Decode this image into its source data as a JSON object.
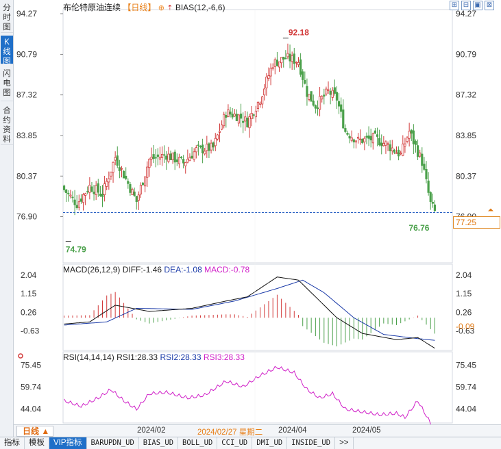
{
  "side_tabs": [
    {
      "label": "分时图",
      "active": false
    },
    {
      "label": "K线图",
      "active": true
    },
    {
      "label": "闪电图",
      "active": false
    },
    {
      "label": "合约资料",
      "active": false
    }
  ],
  "header": {
    "title": "布伦特原油连续",
    "period": "【日线】",
    "gear_glyph": "⊕",
    "arrow_glyph": "⇡",
    "indicator": "BIAS(12,-6,6)"
  },
  "toolbar": [
    "⊞",
    "⊟",
    "▣",
    "⊠"
  ],
  "price_axis": {
    "ticks": [
      "94.27",
      "90.79",
      "87.32",
      "83.85",
      "80.37",
      "76.90"
    ],
    "range": [
      74.0,
      94.27
    ],
    "high_label": "92.18",
    "low_label": "74.79",
    "last_low_label": "76.76",
    "current_price": "77.25"
  },
  "macd": {
    "header_name": "MACD(26,12,9)",
    "diff": "DIFF:-1.46",
    "dea": "DEA:-1.08",
    "macd": "MACD:-0.78",
    "ticks": [
      "2.04",
      "1.15",
      "0.26",
      "-0.63"
    ],
    "current": "-0.09"
  },
  "rsi": {
    "header_name": "RSI(14,14,14)",
    "rsi1": "RSI1:28.33",
    "rsi2": "RSI2:28.33",
    "rsi3": "RSI3:28.33",
    "ticks": [
      "75.45",
      "59.74",
      "44.04"
    ]
  },
  "period_bar": {
    "button": "日线 ▲",
    "dates": [
      "2024/02",
      "2024/02/27 星期二",
      "2024/04",
      "2024/05"
    ]
  },
  "bottom_tabs": [
    {
      "label": "指标",
      "active": false,
      "mono": false
    },
    {
      "label": "模板",
      "active": false,
      "mono": false
    },
    {
      "label": "VIP指标",
      "active": true,
      "mono": false
    },
    {
      "label": "BARUPDN_UD",
      "active": false,
      "mono": true
    },
    {
      "label": "BIAS_UD",
      "active": false,
      "mono": true
    },
    {
      "label": "BOLL_UD",
      "active": false,
      "mono": true
    },
    {
      "label": "CCI_UD",
      "active": false,
      "mono": true
    },
    {
      "label": "DMI_UD",
      "active": false,
      "mono": true
    },
    {
      "label": "INSIDE_UD",
      "active": false,
      "mono": true
    },
    {
      "label": ">>",
      "active": false,
      "mono": false
    }
  ],
  "colors": {
    "up": "#d23a3a",
    "down": "#4aa04a",
    "dif_line": "#111111",
    "dea_line": "#1a3aa8",
    "rsi_line": "#d020c8",
    "accent": "#e87d13"
  },
  "chart_data": {
    "type": "candlestick",
    "price_close_key_points": [
      {
        "i": 0,
        "c": 79.2
      },
      {
        "i": 6,
        "c": 78.0
      },
      {
        "i": 12,
        "c": 79.5
      },
      {
        "i": 18,
        "c": 78.8
      },
      {
        "i": 24,
        "c": 82.0
      },
      {
        "i": 28,
        "c": 80.5
      },
      {
        "i": 34,
        "c": 78.2
      },
      {
        "i": 40,
        "c": 81.8
      },
      {
        "i": 48,
        "c": 82.2
      },
      {
        "i": 56,
        "c": 81.5
      },
      {
        "i": 62,
        "c": 82.6
      },
      {
        "i": 70,
        "c": 82.8
      },
      {
        "i": 76,
        "c": 85.8
      },
      {
        "i": 82,
        "c": 85.5
      },
      {
        "i": 86,
        "c": 85.0
      },
      {
        "i": 92,
        "c": 87.0
      },
      {
        "i": 98,
        "c": 90.0
      },
      {
        "i": 104,
        "c": 90.5
      },
      {
        "i": 110,
        "c": 90.2
      },
      {
        "i": 114,
        "c": 87.5
      },
      {
        "i": 118,
        "c": 86.4
      },
      {
        "i": 124,
        "c": 87.6
      },
      {
        "i": 128,
        "c": 87.0
      },
      {
        "i": 132,
        "c": 84.2
      },
      {
        "i": 138,
        "c": 83.4
      },
      {
        "i": 146,
        "c": 83.6
      },
      {
        "i": 152,
        "c": 83.0
      },
      {
        "i": 158,
        "c": 82.2
      },
      {
        "i": 162,
        "c": 84.2
      },
      {
        "i": 168,
        "c": 81.6
      },
      {
        "i": 172,
        "c": 78.0
      },
      {
        "i": 174,
        "c": 77.3
      }
    ],
    "price_high": 92.18,
    "price_low": 74.79,
    "macd_dif_key_points": [
      {
        "i": 0,
        "v": -0.3
      },
      {
        "i": 12,
        "v": -0.2
      },
      {
        "i": 24,
        "v": 0.6
      },
      {
        "i": 40,
        "v": 0.3
      },
      {
        "i": 60,
        "v": 0.45
      },
      {
        "i": 76,
        "v": 0.8
      },
      {
        "i": 86,
        "v": 1.0
      },
      {
        "i": 100,
        "v": 1.95
      },
      {
        "i": 110,
        "v": 1.8
      },
      {
        "i": 118,
        "v": 1.0
      },
      {
        "i": 128,
        "v": 0.0
      },
      {
        "i": 140,
        "v": -0.75
      },
      {
        "i": 156,
        "v": -1.05
      },
      {
        "i": 166,
        "v": -0.95
      },
      {
        "i": 174,
        "v": -1.46
      }
    ],
    "macd_dea_key_points": [
      {
        "i": 0,
        "v": -0.35
      },
      {
        "i": 20,
        "v": -0.2
      },
      {
        "i": 34,
        "v": 0.45
      },
      {
        "i": 60,
        "v": 0.4
      },
      {
        "i": 80,
        "v": 0.8
      },
      {
        "i": 100,
        "v": 1.4
      },
      {
        "i": 112,
        "v": 1.8
      },
      {
        "i": 122,
        "v": 1.2
      },
      {
        "i": 136,
        "v": 0.0
      },
      {
        "i": 150,
        "v": -0.8
      },
      {
        "i": 166,
        "v": -1.0
      },
      {
        "i": 174,
        "v": -1.08
      }
    ],
    "rsi_key_points": [
      {
        "i": 0,
        "v": 50
      },
      {
        "i": 8,
        "v": 46
      },
      {
        "i": 16,
        "v": 52
      },
      {
        "i": 22,
        "v": 58
      },
      {
        "i": 28,
        "v": 50
      },
      {
        "i": 34,
        "v": 44
      },
      {
        "i": 40,
        "v": 55
      },
      {
        "i": 48,
        "v": 56
      },
      {
        "i": 58,
        "v": 52
      },
      {
        "i": 66,
        "v": 54
      },
      {
        "i": 76,
        "v": 64
      },
      {
        "i": 84,
        "v": 60
      },
      {
        "i": 92,
        "v": 68
      },
      {
        "i": 100,
        "v": 74
      },
      {
        "i": 108,
        "v": 70
      },
      {
        "i": 114,
        "v": 58
      },
      {
        "i": 120,
        "v": 52
      },
      {
        "i": 126,
        "v": 55
      },
      {
        "i": 132,
        "v": 44
      },
      {
        "i": 140,
        "v": 42
      },
      {
        "i": 148,
        "v": 40
      },
      {
        "i": 156,
        "v": 41
      },
      {
        "i": 160,
        "v": 38
      },
      {
        "i": 166,
        "v": 50
      },
      {
        "i": 172,
        "v": 34
      },
      {
        "i": 174,
        "v": 28.33
      }
    ],
    "rsi_range": [
      34,
      80
    ],
    "macd_range": [
      -1.5,
      2.3
    ],
    "n_bars": 175
  }
}
